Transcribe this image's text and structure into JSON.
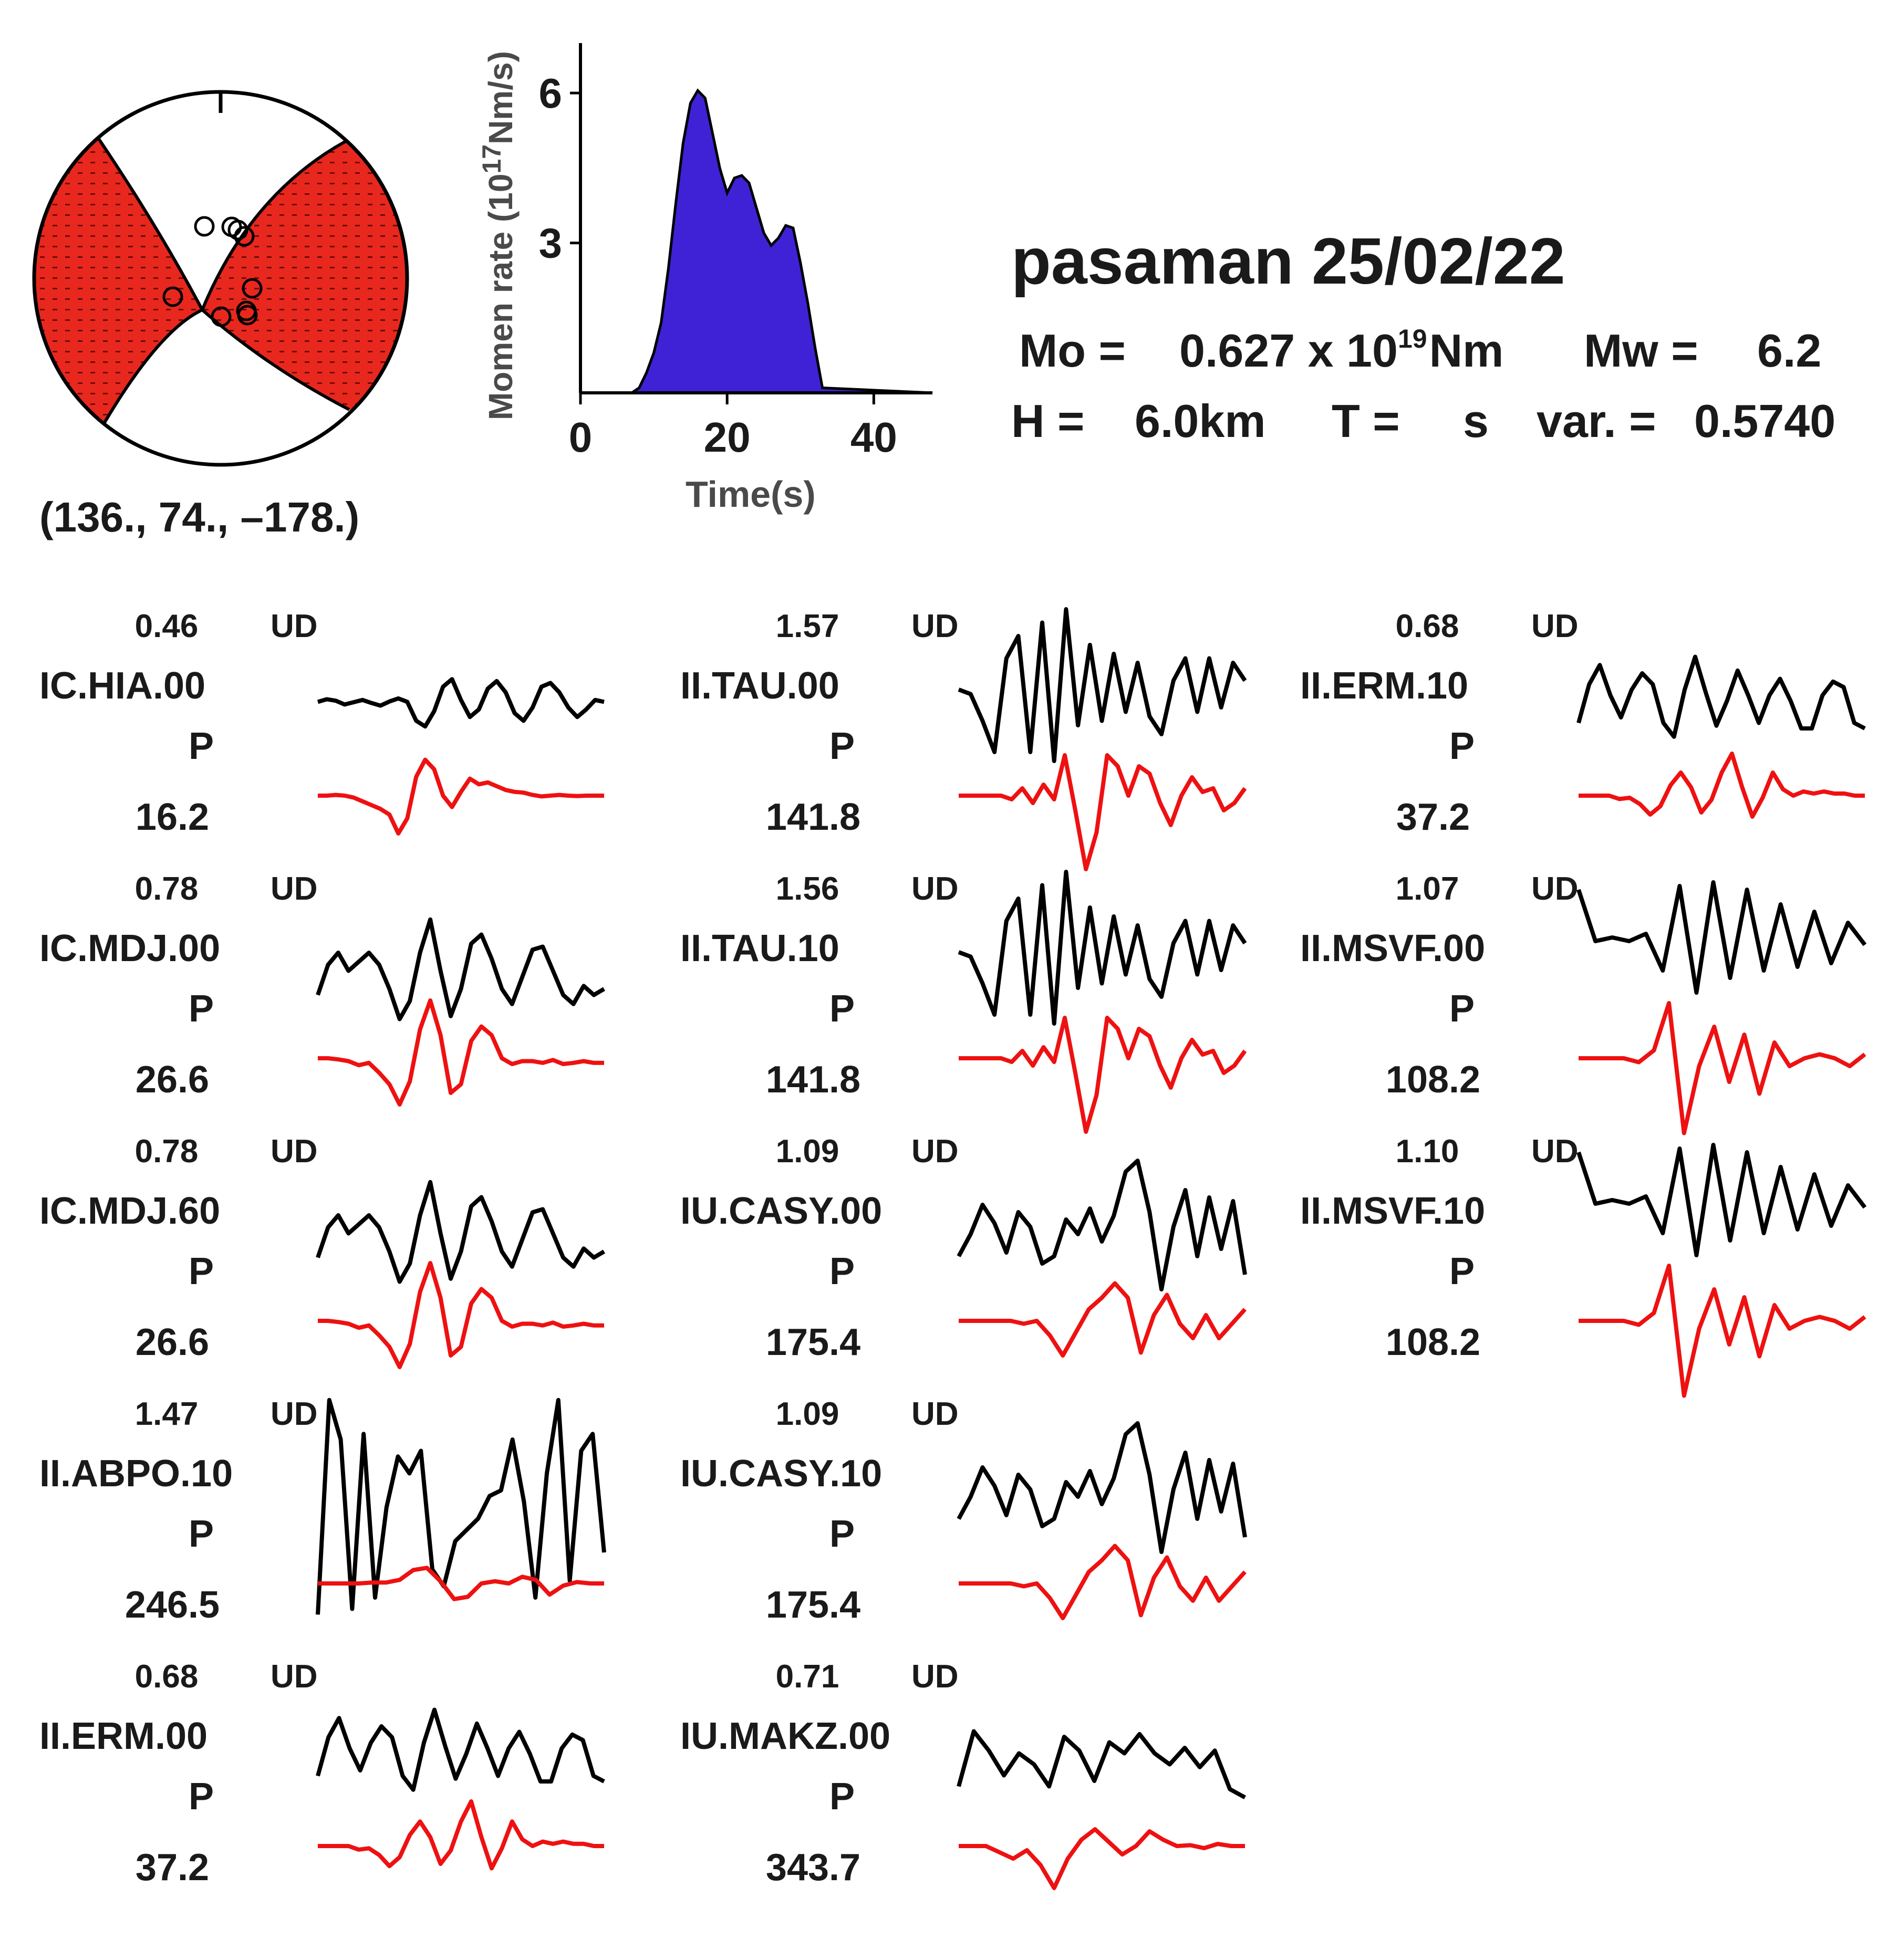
{
  "event": {
    "title": "pasaman 25/02/22",
    "mo_label": "Mo =",
    "mo_value": "0.627 x 10",
    "mo_exp": "19",
    "mo_unit": "Nm",
    "mw_label": "Mw =",
    "mw_value": "6.2",
    "h_label": "H =",
    "h_value": "6.0km",
    "t_label": "T =",
    "t_unit": "s",
    "var_label": "var. =",
    "var_value": "0.5740"
  },
  "focal_mechanism": {
    "strike": 136,
    "dip": 74,
    "rake": -178,
    "label": "(136., 74., –178.)",
    "compressional_color": "#e8281e",
    "dilatational_color": "#ffffff"
  },
  "colors": {
    "observed": "#000000",
    "synthetic": "#ee1111",
    "stf_fill": "#3f22d6"
  },
  "chart_data": [
    {
      "type": "area",
      "name": "moment-rate-function",
      "xlabel": "Time(s)",
      "ylabel_prefix": "Momen rate (10",
      "ylabel_exp": "17",
      "ylabel_suffix": "Nm/s)",
      "xlim": [
        0,
        48
      ],
      "ylim": [
        0,
        7
      ],
      "xticks": [
        0,
        20,
        40
      ],
      "yticks": [
        3,
        6
      ],
      "x": [
        0,
        7,
        8,
        9,
        10,
        11,
        12,
        13,
        14,
        15,
        16,
        17,
        18,
        19,
        20,
        21,
        22,
        23,
        24,
        25,
        26,
        27,
        28,
        29,
        30,
        31,
        32,
        33,
        48
      ],
      "y": [
        0,
        0,
        0.1,
        0.4,
        0.8,
        1.4,
        2.5,
        3.8,
        5.0,
        5.8,
        6.05,
        5.9,
        5.2,
        4.5,
        4.0,
        4.3,
        4.35,
        4.2,
        3.7,
        3.2,
        2.95,
        3.1,
        3.35,
        3.3,
        2.6,
        1.8,
        0.9,
        0.1,
        0
      ]
    },
    {
      "type": "line",
      "name": "waveform-fits",
      "component": "UD",
      "stations": [
        {
          "name": "IC.HIA.00",
          "amplitude": "0.46",
          "comp": "UD",
          "phase": "P",
          "azimuth": "16.2",
          "observed": [
            0.05,
            0.12,
            0.08,
            -0.02,
            0.04,
            0.1,
            0.02,
            -0.05,
            0.06,
            0.14,
            0.05,
            -0.45,
            -0.6,
            -0.2,
            0.45,
            0.65,
            0.1,
            -0.35,
            -0.15,
            0.4,
            0.6,
            0.3,
            -0.25,
            -0.45,
            -0.1,
            0.45,
            0.55,
            0.3,
            -0.1,
            -0.35,
            -0.15,
            0.1,
            0.05
          ],
          "synthetic": [
            0,
            0,
            0.02,
            0,
            -0.05,
            -0.15,
            -0.25,
            -0.35,
            -0.5,
            -1.0,
            -0.6,
            0.5,
            0.95,
            0.7,
            0.0,
            -0.3,
            0.1,
            0.45,
            0.3,
            0.35,
            0.25,
            0.15,
            0.1,
            0.08,
            0.02,
            -0.02,
            0.0,
            0.02,
            0.0,
            -0.01,
            0.0,
            0.0,
            0.0
          ]
        },
        {
          "name": "IC.MDJ.00",
          "amplitude": "0.78",
          "comp": "UD",
          "phase": "P",
          "azimuth": "26.6",
          "observed": [
            -0.3,
            0.2,
            0.4,
            0.1,
            0.25,
            0.4,
            0.2,
            -0.2,
            -0.7,
            -0.4,
            0.4,
            0.95,
            0.1,
            -0.65,
            -0.2,
            0.55,
            0.7,
            0.3,
            -0.2,
            -0.45,
            0.0,
            0.45,
            0.5,
            0.1,
            -0.3,
            -0.45,
            -0.15,
            -0.3,
            -0.2
          ],
          "synthetic": [
            0,
            0,
            -0.02,
            -0.05,
            -0.12,
            -0.08,
            -0.25,
            -0.45,
            -0.8,
            -0.4,
            0.5,
            1.0,
            0.4,
            -0.6,
            -0.45,
            0.3,
            0.55,
            0.4,
            0.0,
            -0.1,
            -0.05,
            -0.05,
            -0.08,
            -0.03,
            -0.1,
            -0.08,
            -0.05,
            -0.08,
            -0.08
          ]
        },
        {
          "name": "IC.MDJ.60",
          "amplitude": "0.78",
          "comp": "UD",
          "phase": "P",
          "azimuth": "26.6",
          "observed": [
            -0.3,
            0.2,
            0.4,
            0.1,
            0.25,
            0.4,
            0.2,
            -0.2,
            -0.7,
            -0.4,
            0.4,
            0.95,
            0.1,
            -0.65,
            -0.2,
            0.55,
            0.7,
            0.3,
            -0.2,
            -0.45,
            0.0,
            0.45,
            0.5,
            0.1,
            -0.3,
            -0.45,
            -0.15,
            -0.3,
            -0.2
          ],
          "synthetic": [
            0,
            0,
            -0.02,
            -0.05,
            -0.12,
            -0.08,
            -0.25,
            -0.45,
            -0.8,
            -0.4,
            0.5,
            1.0,
            0.4,
            -0.6,
            -0.45,
            0.3,
            0.55,
            0.4,
            0.0,
            -0.1,
            -0.05,
            -0.05,
            -0.08,
            -0.03,
            -0.1,
            -0.08,
            -0.05,
            -0.08,
            -0.08
          ]
        },
        {
          "name": "II.ABPO.10",
          "amplitude": "1.47",
          "comp": "UD",
          "phase": "P",
          "azimuth": "246.5",
          "observed": [
            -0.95,
            0.95,
            0.6,
            -0.9,
            0.65,
            -0.8,
            0.0,
            0.45,
            0.3,
            0.5,
            -0.55,
            -0.7,
            -0.3,
            -0.2,
            -0.1,
            0.1,
            0.15,
            0.6,
            0.05,
            -0.8,
            0.3,
            0.95,
            -0.65,
            0.5,
            0.65,
            -0.4
          ],
          "synthetic": [
            0,
            0,
            0,
            0,
            0.02,
            0.02,
            0.08,
            0.3,
            0.35,
            0.05,
            -0.35,
            -0.3,
            0.0,
            0.05,
            0.0,
            0.15,
            0.08,
            -0.25,
            -0.05,
            0.03,
            0.0,
            0.0
          ]
        },
        {
          "name": "II.ERM.00",
          "amplitude": "0.68",
          "comp": "UD",
          "phase": "P",
          "azimuth": "37.2",
          "observed": [
            -0.3,
            0.4,
            0.75,
            0.2,
            -0.2,
            0.3,
            0.6,
            0.4,
            -0.3,
            -0.55,
            0.3,
            0.9,
            0.25,
            -0.35,
            0.1,
            0.65,
            0.2,
            -0.3,
            0.2,
            0.5,
            0.1,
            -0.4,
            -0.4,
            0.2,
            0.45,
            0.35,
            -0.3,
            -0.4
          ],
          "synthetic": [
            0,
            0,
            0,
            0,
            -0.08,
            -0.05,
            -0.2,
            -0.45,
            -0.25,
            0.25,
            0.55,
            0.2,
            -0.4,
            -0.1,
            0.55,
            1.0,
            0.2,
            -0.5,
            -0.05,
            0.55,
            0.15,
            0.0,
            0.1,
            0.05,
            0.1,
            0.05,
            0.05,
            0.0,
            0.0
          ]
        },
        {
          "name": "II.TAU.00",
          "amplitude": "1.57",
          "comp": "UD",
          "phase": "P",
          "azimuth": "141.8",
          "observed": [
            0.1,
            0.05,
            -0.25,
            -0.6,
            0.45,
            0.7,
            -0.6,
            0.85,
            -0.7,
            1.0,
            -0.3,
            0.6,
            -0.25,
            0.5,
            -0.15,
            0.4,
            -0.2,
            -0.4,
            0.2,
            0.45,
            -0.15,
            0.45,
            -0.1,
            0.4,
            0.2
          ],
          "synthetic": [
            0,
            0,
            0,
            0.0,
            0.0,
            -0.05,
            0.1,
            -0.1,
            0.15,
            -0.05,
            0.55,
            -0.2,
            -1.0,
            -0.5,
            0.55,
            0.4,
            0.0,
            0.4,
            0.3,
            -0.1,
            -0.4,
            0.0,
            0.25,
            0.05,
            0.1,
            -0.2,
            -0.1,
            0.1
          ]
        },
        {
          "name": "II.TAU.10",
          "amplitude": "1.56",
          "comp": "UD",
          "phase": "P",
          "azimuth": "141.8",
          "observed": [
            0.1,
            0.05,
            -0.25,
            -0.6,
            0.45,
            0.7,
            -0.6,
            0.85,
            -0.7,
            1.0,
            -0.3,
            0.6,
            -0.25,
            0.5,
            -0.15,
            0.4,
            -0.2,
            -0.4,
            0.2,
            0.45,
            -0.15,
            0.45,
            -0.1,
            0.4,
            0.2
          ],
          "synthetic": [
            0,
            0,
            0,
            0.0,
            0.0,
            -0.05,
            0.1,
            -0.1,
            0.15,
            -0.05,
            0.55,
            -0.2,
            -1.0,
            -0.5,
            0.55,
            0.4,
            0.0,
            0.4,
            0.3,
            -0.1,
            -0.4,
            0.0,
            0.25,
            0.05,
            0.1,
            -0.2,
            -0.1,
            0.1
          ]
        },
        {
          "name": "IU.CASY.00",
          "amplitude": "1.09",
          "comp": "UD",
          "phase": "P",
          "azimuth": "175.4",
          "observed": [
            -0.3,
            0.0,
            0.4,
            0.15,
            -0.25,
            0.3,
            0.1,
            -0.4,
            -0.3,
            0.2,
            0.0,
            0.35,
            -0.1,
            0.25,
            0.85,
            1.0,
            0.3,
            -0.75,
            0.1,
            0.6,
            -0.3,
            0.5,
            -0.2,
            0.45,
            -0.55
          ],
          "synthetic": [
            0,
            0,
            0,
            0,
            0,
            -0.05,
            0.0,
            -0.25,
            -0.6,
            -0.2,
            0.2,
            0.4,
            0.65,
            0.4,
            -0.55,
            0.1,
            0.45,
            -0.05,
            -0.3,
            0.1,
            -0.3,
            -0.05,
            0.2
          ]
        },
        {
          "name": "IU.CASY.10",
          "amplitude": "1.09",
          "comp": "UD",
          "phase": "P",
          "azimuth": "175.4",
          "observed": [
            -0.3,
            0.0,
            0.4,
            0.15,
            -0.25,
            0.3,
            0.1,
            -0.4,
            -0.3,
            0.2,
            0.0,
            0.35,
            -0.1,
            0.25,
            0.85,
            1.0,
            0.3,
            -0.75,
            0.1,
            0.6,
            -0.3,
            0.5,
            -0.2,
            0.45,
            -0.55
          ],
          "synthetic": [
            0,
            0,
            0,
            0,
            0,
            -0.05,
            0.0,
            -0.25,
            -0.6,
            -0.2,
            0.2,
            0.4,
            0.65,
            0.4,
            -0.55,
            0.1,
            0.45,
            -0.05,
            -0.3,
            0.1,
            -0.3,
            -0.05,
            0.2
          ]
        },
        {
          "name": "IU.MAKZ.00",
          "amplitude": "0.71",
          "comp": "UD",
          "phase": "P",
          "azimuth": "343.7",
          "observed": [
            -0.3,
            0.7,
            0.35,
            -0.1,
            0.3,
            0.1,
            -0.3,
            0.6,
            0.35,
            -0.2,
            0.5,
            0.3,
            0.65,
            0.3,
            0.1,
            0.4,
            0.05,
            0.35,
            -0.35,
            -0.5
          ],
          "synthetic": [
            0,
            0,
            0,
            -0.15,
            -0.3,
            -0.1,
            -0.45,
            -1.0,
            -0.3,
            0.15,
            0.4,
            0.1,
            -0.2,
            0.0,
            0.35,
            0.15,
            0.0,
            0.02,
            -0.05,
            0.05,
            0.0,
            0.0
          ]
        },
        {
          "name": "II.ERM.10",
          "amplitude": "0.68",
          "comp": "UD",
          "phase": "P",
          "azimuth": "37.2",
          "observed": [
            -0.3,
            0.4,
            0.75,
            0.2,
            -0.2,
            0.3,
            0.6,
            0.4,
            -0.3,
            -0.55,
            0.3,
            0.9,
            0.25,
            -0.35,
            0.1,
            0.65,
            0.2,
            -0.3,
            0.2,
            0.5,
            0.1,
            -0.4,
            -0.4,
            0.2,
            0.45,
            0.35,
            -0.3,
            -0.4
          ],
          "synthetic": [
            0,
            0,
            0,
            0,
            -0.08,
            -0.05,
            -0.2,
            -0.45,
            -0.25,
            0.25,
            0.55,
            0.2,
            -0.4,
            -0.1,
            0.55,
            1.0,
            0.2,
            -0.5,
            -0.05,
            0.55,
            0.15,
            0.0,
            0.1,
            0.05,
            0.1,
            0.05,
            0.05,
            0.0,
            0.0
          ]
        },
        {
          "name": "II.MSVF.00",
          "amplitude": "1.07",
          "comp": "UD",
          "phase": "P",
          "azimuth": "108.2",
          "observed": [
            0.9,
            0.2,
            0.25,
            0.2,
            0.3,
            -0.2,
            0.95,
            -0.5,
            1.0,
            -0.3,
            0.9,
            -0.2,
            0.7,
            -0.15,
            0.6,
            -0.1,
            0.45,
            0.15
          ],
          "synthetic": [
            0,
            0,
            0,
            0.0,
            -0.05,
            0.1,
            0.7,
            -0.95,
            -0.1,
            0.4,
            -0.3,
            0.3,
            -0.45,
            0.2,
            -0.1,
            0.0,
            0.05,
            0.0,
            -0.1,
            0.05
          ]
        },
        {
          "name": "II.MSVF.10",
          "amplitude": "1.10",
          "comp": "UD",
          "phase": "P",
          "azimuth": "108.2",
          "observed": [
            0.9,
            0.2,
            0.25,
            0.2,
            0.3,
            -0.2,
            0.95,
            -0.5,
            1.0,
            -0.3,
            0.9,
            -0.2,
            0.7,
            -0.15,
            0.6,
            -0.1,
            0.45,
            0.15
          ],
          "synthetic": [
            0,
            0,
            0,
            0.0,
            -0.05,
            0.1,
            0.7,
            -0.95,
            -0.1,
            0.4,
            -0.3,
            0.3,
            -0.45,
            0.2,
            -0.1,
            0.0,
            0.05,
            0.0,
            -0.1,
            0.05
          ]
        }
      ]
    }
  ]
}
